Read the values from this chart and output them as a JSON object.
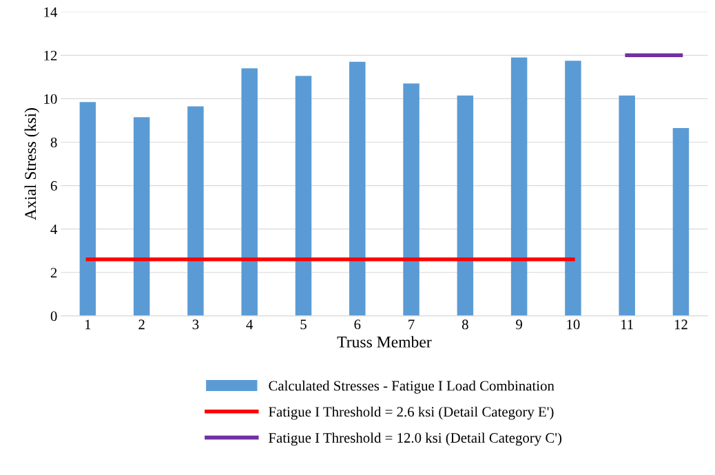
{
  "chart_data": {
    "type": "bar",
    "xlabel": "Truss Member",
    "ylabel": "Axial Stress (ksi)",
    "categories": [
      "1",
      "2",
      "3",
      "4",
      "5",
      "6",
      "7",
      "8",
      "9",
      "10",
      "11",
      "12"
    ],
    "series": [
      {
        "name": "Calculated Stresses - Fatigue I Load Combination",
        "color": "#5b9bd5",
        "values": [
          9.85,
          9.15,
          9.65,
          11.4,
          11.05,
          11.7,
          10.7,
          10.15,
          11.9,
          11.75,
          10.15,
          8.65
        ]
      },
      {
        "name": "Fatigue I Threshold = 2.6 ksi (Detail Category E')",
        "type": "line",
        "color": "#ff0000",
        "values": [
          2.6,
          2.6,
          2.6,
          2.6,
          2.6,
          2.6,
          2.6,
          2.6,
          2.6,
          2.6,
          null,
          null
        ]
      },
      {
        "name": "Fatigue I Threshold = 12.0 ksi (Detail Category C')",
        "type": "line",
        "color": "#7030a0",
        "values": [
          null,
          null,
          null,
          null,
          null,
          null,
          null,
          null,
          null,
          null,
          12.0,
          12.0
        ]
      }
    ],
    "ylim": [
      0,
      14
    ],
    "yticks": [
      0,
      2,
      4,
      6,
      8,
      10,
      12,
      14
    ],
    "grid": "y",
    "legend": "bottom",
    "marker": "none",
    "line_style": "solid"
  }
}
